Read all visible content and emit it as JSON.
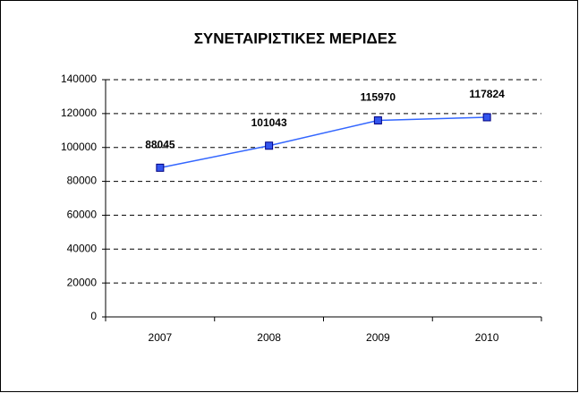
{
  "chart_data": {
    "type": "line",
    "title": "ΣΥΝΕΤΑΙΡΙΣΤΙΚΕΣ ΜΕΡΙΔΕΣ",
    "categories": [
      "2007",
      "2008",
      "2009",
      "2010"
    ],
    "values": [
      88045,
      101043,
      115970,
      117824
    ],
    "color": "#3366ff",
    "marker_color": "#3355ee",
    "ylim": [
      0,
      140000
    ],
    "yticks": [
      0,
      20000,
      40000,
      60000,
      80000,
      100000,
      120000,
      140000
    ],
    "grid": true,
    "data_labels": true
  }
}
